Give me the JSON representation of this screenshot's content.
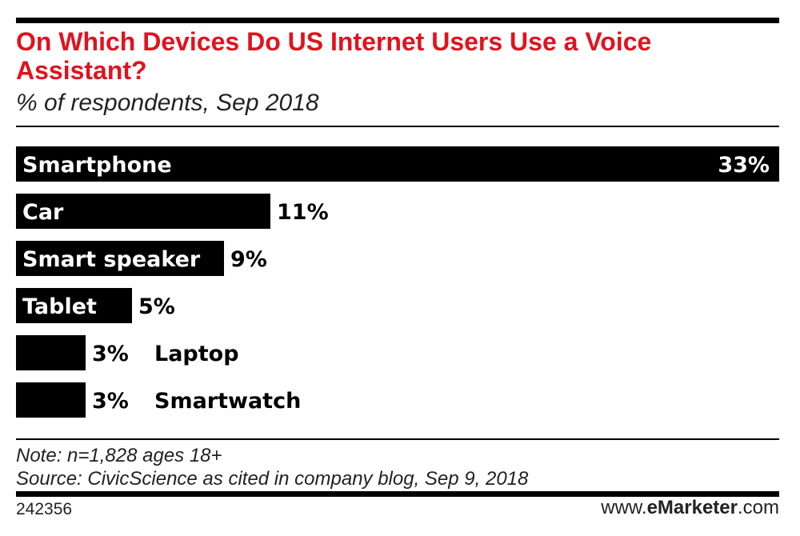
{
  "chart_data": {
    "type": "bar",
    "orientation": "horizontal",
    "title": "On Which Devices Do US Internet Users Use a Voice Assistant?",
    "subtitle": "% of respondents, Sep 2018",
    "categories": [
      "Smartphone",
      "Car",
      "Smart speaker",
      "Tablet",
      "Laptop",
      "Smartwatch"
    ],
    "values": [
      33,
      11,
      9,
      5,
      3,
      3
    ],
    "value_labels": [
      "33%",
      "11%",
      "9%",
      "5%",
      "3%",
      "3%"
    ],
    "xlim": [
      0,
      33
    ],
    "bar_color": "#000000"
  },
  "notes": {
    "note": "Note: n=1,828 ages 18+",
    "source": "Source: CivicScience as cited in company blog, Sep 9, 2018"
  },
  "footer": {
    "chart_id": "242356",
    "brand_prefix": "www.",
    "brand_name": "eMarketer",
    "brand_suffix": ".com"
  },
  "colors": {
    "title": "#e0131e",
    "bar": "#000000",
    "text": "#222222"
  }
}
